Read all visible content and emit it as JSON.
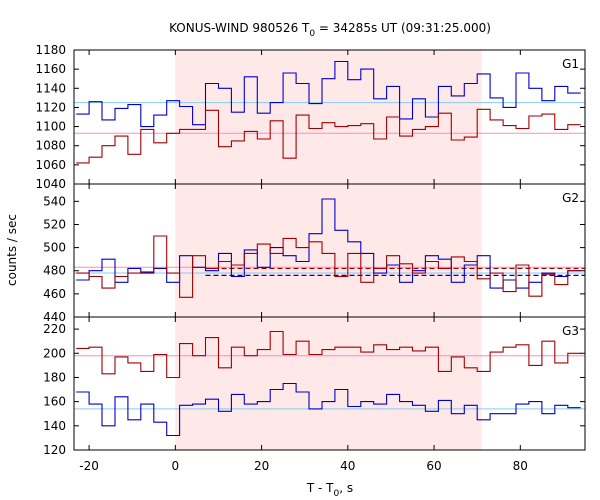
{
  "chart_data": {
    "type": "line",
    "title": {
      "prefix": "KONUS-WIND 980526 T",
      "sub": "0",
      "suffix": " = 34285s UT (09:31:25.000)"
    },
    "xlabel": {
      "prefix": "T - T",
      "sub": "0",
      "suffix": ", s"
    },
    "ylabel": "counts / sec",
    "xlim": [
      -23.5,
      95
    ],
    "xticks": [
      -20,
      0,
      20,
      40,
      60,
      80
    ],
    "xtick_labels": [
      "-20",
      "0",
      "20",
      "40",
      "60",
      "80"
    ],
    "highlight_interval": [
      0,
      71
    ],
    "colors": {
      "highlight": "#ffe8e8",
      "red_series": "#a00000",
      "blue_series": "#0000cc",
      "red_background": "#ff88cc",
      "blue_background": "#88ccee",
      "red_dashed": "#a00000",
      "blue_dashed": "#0000cc"
    },
    "panels": [
      {
        "label": "G1",
        "ylim": [
          1040,
          1180
        ],
        "yticks": [
          1040,
          1060,
          1080,
          1100,
          1120,
          1140,
          1160,
          1180
        ],
        "ytick_labels": [
          "1040",
          "1060",
          "1080",
          "1100",
          "1120",
          "1140",
          "1160",
          "1180"
        ],
        "bin_edges": [
          -23,
          -20,
          -17,
          -14,
          -11,
          -8,
          -5,
          -2,
          1,
          4,
          7,
          10,
          13,
          16,
          19,
          22,
          25,
          28,
          31,
          34,
          37,
          40,
          43,
          46,
          49,
          52,
          55,
          58,
          61,
          64,
          67,
          70,
          73,
          76,
          79,
          82,
          85,
          88,
          91,
          94
        ],
        "series": [
          {
            "color": "blue",
            "values": [
              1113,
              1126,
              1107,
              1119,
              1123,
              1100,
              1112,
              1127,
              1121,
              1102,
              1145,
              1140,
              1115,
              1152,
              1114,
              1125,
              1156,
              1145,
              1124,
              1150,
              1168,
              1149,
              1160,
              1129,
              1142,
              1108,
              1129,
              1110,
              1142,
              1132,
              1145,
              1155,
              1130,
              1120,
              1156,
              1140,
              1127,
              1142,
              1135
            ]
          },
          {
            "color": "red",
            "values": [
              1062,
              1068,
              1080,
              1090,
              1071,
              1097,
              1083,
              1093,
              1097,
              1097,
              1117,
              1079,
              1085,
              1095,
              1087,
              1106,
              1067,
              1112,
              1098,
              1104,
              1100,
              1101,
              1103,
              1087,
              1110,
              1090,
              1097,
              1100,
              1114,
              1086,
              1089,
              1118,
              1107,
              1101,
              1098,
              1111,
              1113,
              1097,
              1102
            ]
          }
        ],
        "backgrounds": [
          {
            "color": "blue",
            "value": 1125
          },
          {
            "color": "red",
            "value": 1093
          }
        ],
        "dashed": []
      },
      {
        "label": "G2",
        "ylim": [
          440,
          555
        ],
        "yticks": [
          440,
          460,
          480,
          500,
          520,
          540
        ],
        "ytick_labels": [
          "440",
          "460",
          "480",
          "500",
          "520",
          "540"
        ],
        "bin_edges": [
          -23,
          -20,
          -17,
          -14,
          -11,
          -8,
          -5,
          -2,
          1,
          4,
          7,
          10,
          13,
          16,
          19,
          22,
          25,
          28,
          31,
          34,
          37,
          40,
          43,
          46,
          49,
          52,
          55,
          58,
          61,
          64,
          67,
          70,
          73,
          76,
          79,
          82,
          85,
          88,
          91,
          94
        ],
        "series": [
          {
            "color": "blue",
            "values": [
              472,
              480,
              490,
              470,
              482,
              478,
              482,
              470,
              493,
              483,
              480,
              495,
              475,
              498,
              483,
              500,
              493,
              488,
              512,
              542,
              515,
              505,
              495,
              478,
              485,
              470,
              480,
              493,
              490,
              470,
              485,
              493,
              465,
              472,
              465,
              470,
              478,
              475,
              480
            ]
          },
          {
            "color": "red",
            "values": [
              478,
              475,
              465,
              475,
              478,
              479,
              510,
              478,
              457,
              493,
              482,
              488,
              485,
              495,
              503,
              495,
              508,
              500,
              505,
              495,
              475,
              495,
              470,
              482,
              493,
              486,
              478,
              488,
              482,
              492,
              488,
              473,
              478,
              462,
              485,
              458,
              477,
              468,
              480
            ]
          }
        ],
        "backgrounds": [
          {
            "color": "blue",
            "value": 478
          },
          {
            "color": "red",
            "value": 483
          }
        ],
        "dashed": [
          {
            "color": "red",
            "value": 482,
            "x_from": 7
          },
          {
            "color": "blue",
            "value": 476,
            "x_from": 7
          }
        ]
      },
      {
        "label": "G3",
        "ylim": [
          120,
          230
        ],
        "yticks": [
          120,
          140,
          160,
          180,
          200,
          220
        ],
        "ytick_labels": [
          "120",
          "140",
          "160",
          "180",
          "200",
          "220"
        ],
        "bin_edges": [
          -23,
          -20,
          -17,
          -14,
          -11,
          -8,
          -5,
          -2,
          1,
          4,
          7,
          10,
          13,
          16,
          19,
          22,
          25,
          28,
          31,
          34,
          37,
          40,
          43,
          46,
          49,
          52,
          55,
          58,
          61,
          64,
          67,
          70,
          73,
          76,
          79,
          82,
          85,
          88,
          91,
          94
        ],
        "series": [
          {
            "color": "blue",
            "values": [
              168,
              158,
              140,
              164,
              145,
              158,
              143,
              132,
              157,
              158,
              162,
              152,
              166,
              158,
              160,
              170,
              175,
              168,
              154,
              160,
              170,
              156,
              160,
              158,
              166,
              160,
              157,
              152,
              161,
              150,
              157,
              145,
              150,
              150,
              158,
              160,
              150,
              157,
              155
            ]
          },
          {
            "color": "red",
            "values": [
              204,
              205,
              183,
              197,
              192,
              185,
              199,
              180,
              208,
              198,
              213,
              188,
              205,
              198,
              203,
              218,
              199,
              210,
              199,
              203,
              205,
              205,
              201,
              207,
              203,
              205,
              202,
              205,
              185,
              197,
              188,
              185,
              201,
              205,
              207,
              190,
              210,
              192,
              200
            ]
          }
        ],
        "backgrounds": [
          {
            "color": "blue",
            "value": 154
          },
          {
            "color": "red",
            "value": 198
          }
        ],
        "dashed": []
      }
    ]
  }
}
